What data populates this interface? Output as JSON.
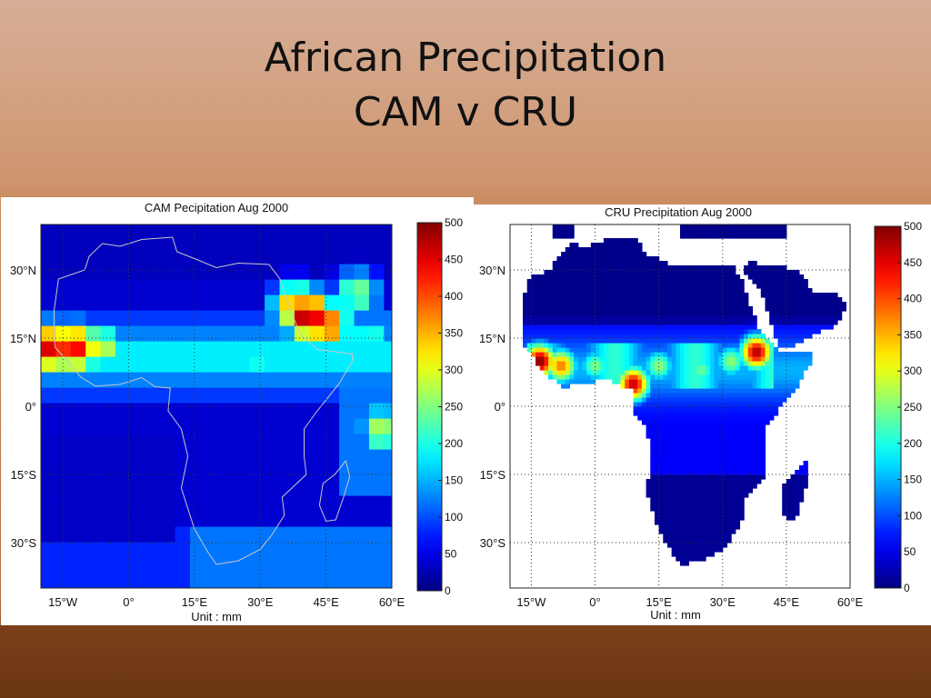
{
  "slide": {
    "title_line1": "African Precipitation",
    "title_line2": "CAM v CRU"
  },
  "colors": {
    "ocean_low": "#1020b0",
    "colormap": "jet"
  },
  "chart_data": [
    {
      "type": "heatmap",
      "title": "CAM Pecipitation    Aug 2000",
      "xlabel": "Unit : mm",
      "x_ticks": [
        "15°W",
        "0°",
        "15°E",
        "30°E",
        "45°E",
        "60°E"
      ],
      "y_ticks": [
        "30°N",
        "15°N",
        "0°",
        "15°S",
        "30°S"
      ],
      "colorbar_ticks": [
        500,
        450,
        400,
        350,
        300,
        250,
        200,
        150,
        100,
        50,
        0
      ],
      "xlim": [
        -20,
        60
      ],
      "ylim": [
        -40,
        40
      ],
      "clim": [
        0,
        500
      ],
      "grid": true,
      "hotspots": [
        {
          "lon": -17,
          "lat": 13,
          "value": 480
        },
        {
          "lon": -12,
          "lat": 13,
          "value": 440
        },
        {
          "lon": -7,
          "lat": 13,
          "value": 320
        },
        {
          "lon": 41,
          "lat": 20,
          "value": 500
        },
        {
          "lon": 45,
          "lat": 18,
          "value": 420
        },
        {
          "lon": 38,
          "lat": 22,
          "value": 380
        },
        {
          "lon": 52,
          "lat": 25,
          "value": 260
        },
        {
          "lon": 55,
          "lat": 15,
          "value": 220
        },
        {
          "lon": 58,
          "lat": -5,
          "value": 290
        },
        {
          "lon": 30,
          "lat": 10,
          "value": 200
        },
        {
          "lon": 10,
          "lat": 12,
          "value": 180
        },
        {
          "lon": 0,
          "lat": 10,
          "value": 190
        }
      ]
    },
    {
      "type": "heatmap",
      "title": "CRU Precipitation    Aug 2000",
      "xlabel": "Unit : mm",
      "x_ticks": [
        "15°W",
        "0°",
        "15°E",
        "30°E",
        "45°E",
        "60°E"
      ],
      "y_ticks": [
        "30°N",
        "15°N",
        "0°",
        "15°S",
        "30°S"
      ],
      "colorbar_ticks": [
        500,
        450,
        400,
        350,
        300,
        250,
        200,
        150,
        100,
        50,
        0
      ],
      "xlim": [
        -20,
        60
      ],
      "ylim": [
        -40,
        40
      ],
      "clim": [
        0,
        500
      ],
      "grid": true,
      "ocean_masked": true,
      "hotspots": [
        {
          "lon": -13,
          "lat": 10,
          "value": 500
        },
        {
          "lon": -8,
          "lat": 9,
          "value": 380
        },
        {
          "lon": 9,
          "lat": 5,
          "value": 470
        },
        {
          "lon": 38,
          "lat": 12,
          "value": 480
        },
        {
          "lon": 15,
          "lat": 9,
          "value": 260
        },
        {
          "lon": 25,
          "lat": 8,
          "value": 240
        },
        {
          "lon": 0,
          "lat": 9,
          "value": 250
        },
        {
          "lon": 32,
          "lat": 10,
          "value": 260
        }
      ]
    }
  ]
}
